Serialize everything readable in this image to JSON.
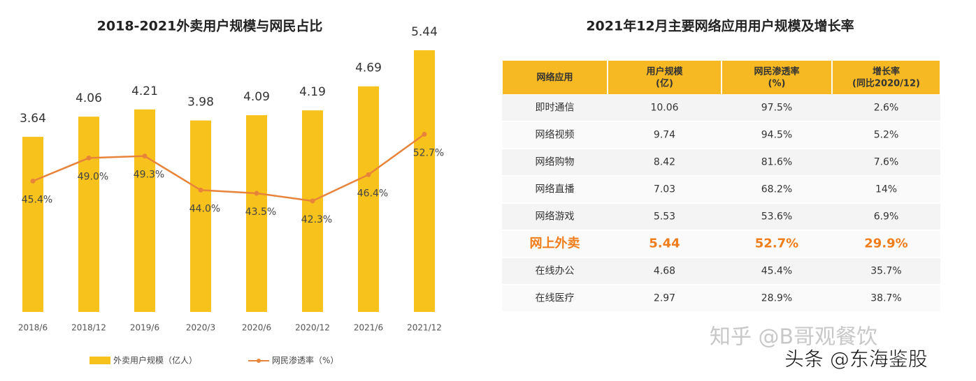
{
  "chart_data": {
    "type": "bar",
    "title": "2018-2021外卖用户规模与网民占比",
    "categories": [
      "2018/6",
      "2018/12",
      "2019/6",
      "2020/3",
      "2020/6",
      "2020/12",
      "2021/6",
      "2021/12"
    ],
    "series": [
      {
        "name": "外卖用户规模（亿人）",
        "type": "bar",
        "color": "#f7c21b",
        "values": [
          3.64,
          4.06,
          4.21,
          3.98,
          4.09,
          4.19,
          4.69,
          5.44
        ]
      },
      {
        "name": "网民渗透率（%）",
        "type": "line",
        "axis": "y2",
        "color": "#e8843a",
        "values": [
          45.4,
          49.0,
          49.3,
          44.0,
          43.5,
          42.3,
          46.4,
          52.7
        ],
        "value_labels": [
          "45.4%",
          "49.0%",
          "49.3%",
          "44.0%",
          "43.5%",
          "42.3%",
          "46.4%",
          "52.7%"
        ]
      }
    ],
    "ylim": [
      0,
      5.6
    ],
    "y2lim": [
      25,
      67
    ],
    "legend": "bottom"
  },
  "table": {
    "title": "2021年12月主要网络应用用户规模及增长率",
    "header": [
      "网络应用",
      "用户规模\n(亿)",
      "网民渗透率\n(%)",
      "增长率\n(同比2020/12)"
    ],
    "rows": [
      [
        "即时通信",
        "10.06",
        "97.5%",
        "2.6%"
      ],
      [
        "网络视频",
        "9.74",
        "94.5%",
        "5.2%"
      ],
      [
        "网络购物",
        "8.42",
        "81.6%",
        "7.6%"
      ],
      [
        "网络直播",
        "7.03",
        "68.2%",
        "14%"
      ],
      [
        "网络游戏",
        "5.53",
        "53.6%",
        "6.9%"
      ],
      [
        "网上外卖",
        "5.44",
        "52.7%",
        "29.9%"
      ],
      [
        "在线办公",
        "4.68",
        "45.4%",
        "35.7%"
      ],
      [
        "在线医疗",
        "2.97",
        "28.9%",
        "38.7%"
      ]
    ],
    "highlight_row": 5,
    "header_color": "#f6b924",
    "highlight_color": "#f07d1a"
  },
  "watermarks": [
    "知乎 @B哥观餐饮",
    "头条 @东海鉴股"
  ]
}
